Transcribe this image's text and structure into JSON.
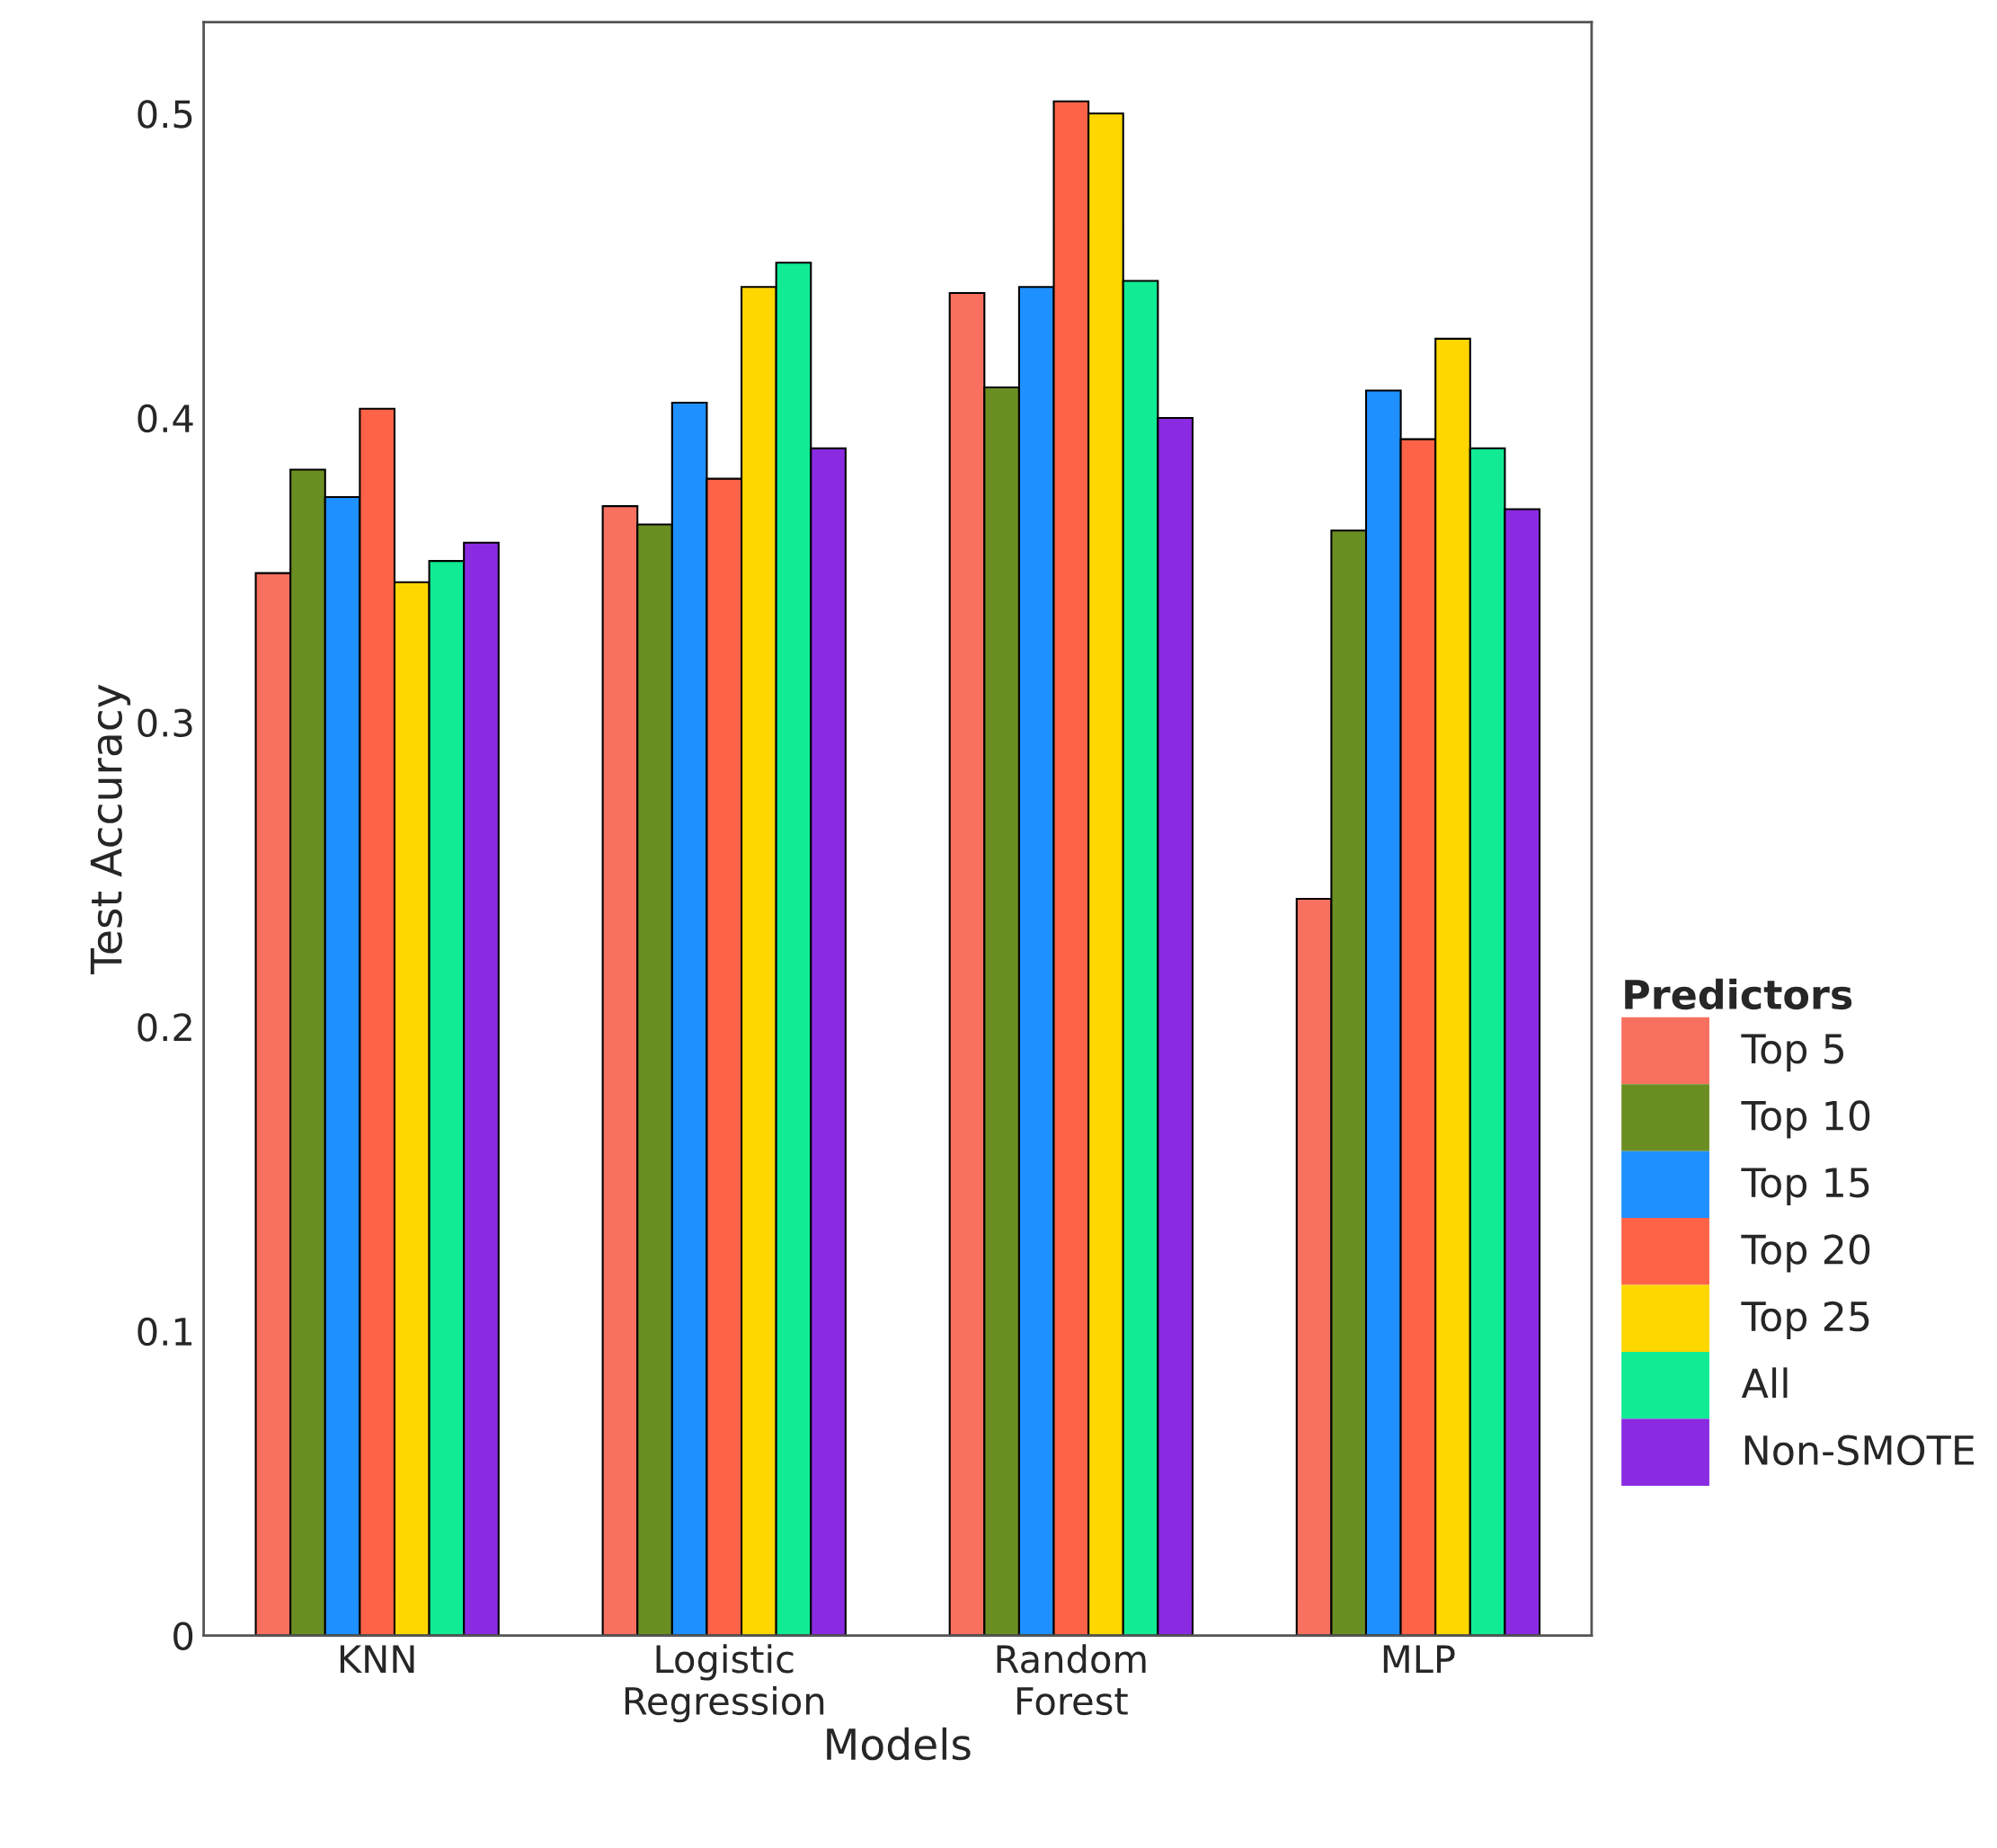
{
  "chart_data": {
    "type": "bar",
    "xlabel": "Models",
    "ylabel": "Test Accuracy",
    "legend_title": "Predictors",
    "categories": [
      "KNN",
      "Logistic\nRegression",
      "Random\nForest",
      "MLP"
    ],
    "series": [
      {
        "name": "Top 5",
        "color": "#f87060",
        "values": [
          0.349,
          0.371,
          0.441,
          0.242
        ]
      },
      {
        "name": "Top 10",
        "color": "#6b8e23",
        "values": [
          0.383,
          0.365,
          0.41,
          0.363
        ]
      },
      {
        "name": "Top 15",
        "color": "#1e90ff",
        "values": [
          0.374,
          0.405,
          0.443,
          0.409
        ]
      },
      {
        "name": "Top 20",
        "color": "#ff6347",
        "values": [
          0.403,
          0.38,
          0.504,
          0.393
        ]
      },
      {
        "name": "Top 25",
        "color": "#ffd700",
        "values": [
          0.346,
          0.443,
          0.5,
          0.426
        ]
      },
      {
        "name": "All",
        "color": "#10eb94",
        "values": [
          0.353,
          0.451,
          0.445,
          0.39
        ]
      },
      {
        "name": "Non-SMOTE",
        "color": "#8a2be2",
        "values": [
          0.359,
          0.39,
          0.4,
          0.37
        ]
      }
    ],
    "ylim": [
      0,
      0.53
    ],
    "yticks": [
      0,
      0.1,
      0.2,
      0.3,
      0.4,
      0.5
    ],
    "grid": false,
    "legend": "right"
  }
}
